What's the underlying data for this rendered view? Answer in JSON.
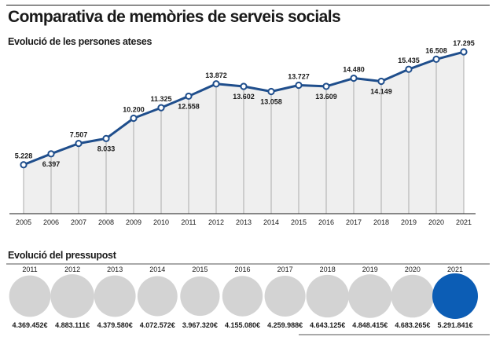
{
  "title": "Comparativa de memòries de serveis socials",
  "chart_data": [
    {
      "type": "line",
      "title": "Evolució de les persones ateses",
      "xlabel": "",
      "ylabel": "",
      "categories": [
        "2005",
        "2006",
        "2007",
        "2008",
        "2009",
        "2010",
        "2011",
        "2012",
        "2013",
        "2014",
        "2015",
        "2016",
        "2017",
        "2018",
        "2019",
        "2020",
        "2021"
      ],
      "values": [
        5228,
        6397,
        7507,
        8033,
        10200,
        11325,
        12558,
        13872,
        13602,
        13058,
        13727,
        13609,
        14480,
        14149,
        15435,
        16508,
        17295
      ],
      "value_labels": [
        "5.228",
        "6.397",
        "7.507",
        "8.033",
        "10.200",
        "11.325",
        "12.558",
        "13.872",
        "13.602",
        "13.058",
        "13.727",
        "13.609",
        "14.480",
        "14.149",
        "15.435",
        "16.508",
        "17.295"
      ],
      "ylim": [
        0,
        17800
      ],
      "colors": {
        "line": "#1f4e8c",
        "fill": "#efefef",
        "grid": "#9a9a9a",
        "marker_fill": "#ffffff"
      }
    },
    {
      "type": "bubble",
      "title": "Evolució del pressupost",
      "categories": [
        "2011",
        "2012",
        "2013",
        "2014",
        "2015",
        "2016",
        "2017",
        "2018",
        "2019",
        "2020",
        "2021"
      ],
      "values": [
        4369452,
        4883111,
        4379580,
        4072572,
        3967320,
        4155080,
        4259988,
        4643125,
        4848415,
        4683265,
        5291841
      ],
      "value_labels": [
        "4.369.452€",
        "4.883.111€",
        "4.379.580€",
        "4.072.572€",
        "3.967.320€",
        "4.155.080€",
        "4.259.988€",
        "4.643.125€",
        "4.848.415€",
        "4.683.265€",
        "5.291.841€"
      ],
      "colors": {
        "default": "#d3d3d3",
        "highlight": "#0c5db5"
      },
      "highlight_index": 10
    }
  ]
}
